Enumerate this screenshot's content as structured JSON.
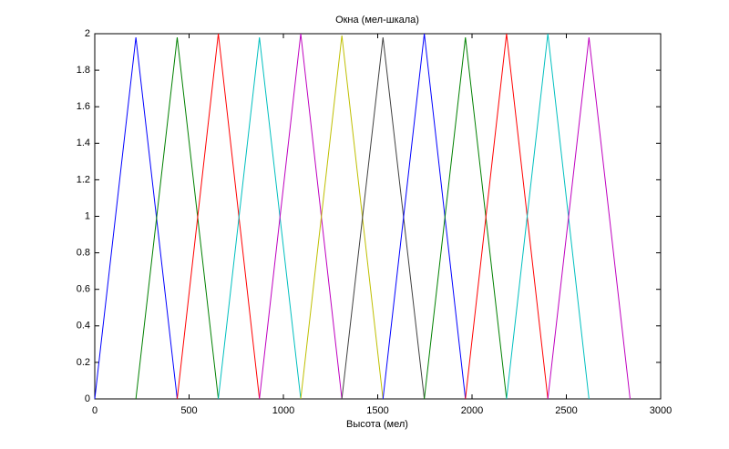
{
  "chart_data": {
    "type": "line",
    "title": "Окна (мел-шкала)",
    "x_label": "Высота (мел)",
    "xlim": [
      0,
      3000
    ],
    "xticks": [
      0,
      500,
      1000,
      1500,
      2000,
      2500,
      3000
    ],
    "ylim": [
      0,
      2
    ],
    "yticks": [
      0,
      0.2,
      0.4,
      0.6,
      0.8,
      1,
      1.2,
      1.4,
      1.6,
      1.8,
      2
    ],
    "grid": false,
    "series": [
      {
        "color": "#0000ff",
        "x": [
          0,
          218,
          437
        ],
        "values": [
          0,
          1.98,
          0
        ]
      },
      {
        "color": "#008000",
        "x": [
          218,
          437,
          655
        ],
        "values": [
          0,
          1.98,
          0
        ]
      },
      {
        "color": "#ff0000",
        "x": [
          437,
          655,
          873
        ],
        "values": [
          0,
          2,
          0
        ]
      },
      {
        "color": "#00bfbf",
        "x": [
          655,
          873,
          1092
        ],
        "values": [
          0,
          1.98,
          0
        ]
      },
      {
        "color": "#bf00bf",
        "x": [
          873,
          1092,
          1310
        ],
        "values": [
          0,
          2,
          0
        ]
      },
      {
        "color": "#bfbf00",
        "x": [
          1092,
          1310,
          1528
        ],
        "values": [
          0,
          1.99,
          0
        ]
      },
      {
        "color": "#404040",
        "x": [
          1310,
          1528,
          1747
        ],
        "values": [
          0,
          1.98,
          0
        ]
      },
      {
        "color": "#0000ff",
        "x": [
          1528,
          1747,
          1965
        ],
        "values": [
          0,
          2,
          0
        ]
      },
      {
        "color": "#008000",
        "x": [
          1747,
          1965,
          2183
        ],
        "values": [
          0,
          1.98,
          0
        ]
      },
      {
        "color": "#ff0000",
        "x": [
          1965,
          2183,
          2402
        ],
        "values": [
          0,
          2,
          0
        ]
      },
      {
        "color": "#00bfbf",
        "x": [
          2183,
          2402,
          2620
        ],
        "values": [
          0,
          2,
          0
        ]
      },
      {
        "color": "#bf00bf",
        "x": [
          2402,
          2620,
          2838
        ],
        "values": [
          0,
          1.98,
          0
        ]
      }
    ]
  }
}
